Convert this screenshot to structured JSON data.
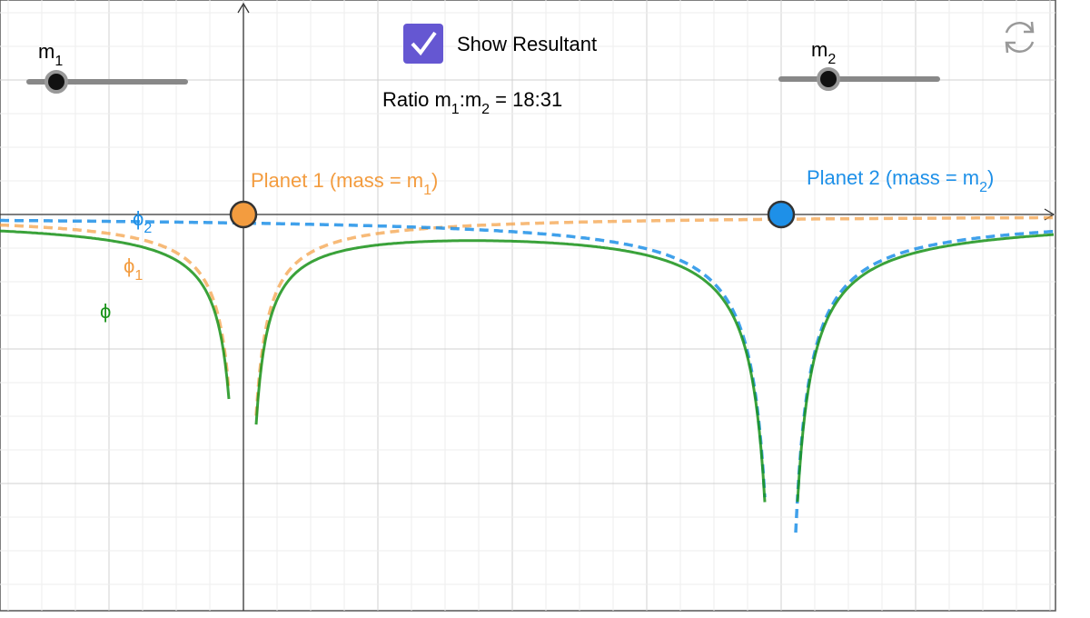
{
  "sliders": [
    {
      "base": "m",
      "sub": "1"
    },
    {
      "base": "m",
      "sub": "2"
    }
  ],
  "checkbox": {
    "label": "Show Resultant",
    "checked": true
  },
  "ratio": {
    "prefix": "Ratio m",
    "sub1": "1",
    "mid": ":m",
    "sub2": "2",
    "suffix": " = 18:31"
  },
  "planets": [
    {
      "text": "Planet 1 (mass = m",
      "sub": "1",
      "close": ")",
      "color": "#f39c3f"
    },
    {
      "text": "Planet 2 (mass = m",
      "sub": "2",
      "close": ")",
      "color": "#1e90e8"
    }
  ],
  "curve_labels": [
    {
      "base": "ϕ",
      "sub": "2",
      "color": "#1e90e8"
    },
    {
      "base": "ϕ",
      "sub": "1",
      "color": "#f39c3f"
    },
    {
      "base": "ϕ",
      "color": "#179217"
    }
  ]
}
